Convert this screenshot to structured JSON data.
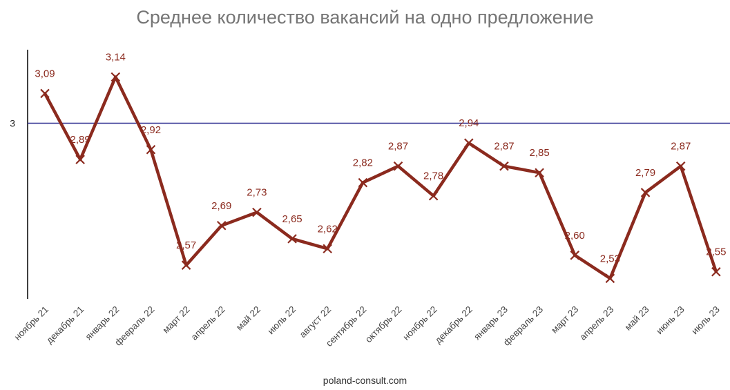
{
  "chart_data": {
    "type": "line",
    "title": "Среднее количество вакансий на одно предложение",
    "xlabel": "",
    "ylabel": "",
    "categories": [
      "ноябрь 21",
      "декабрь 21",
      "январь 22",
      "февраль 22",
      "март 22",
      "апрель 22",
      "май 22",
      "июль 22",
      "август 22",
      "сентябрь 22",
      "октябрь 22",
      "ноябрь 22",
      "декабрь 22",
      "январь 23",
      "февраль 23",
      "март 23",
      "апрель 23",
      "май 23",
      "июнь 23",
      "июль 23"
    ],
    "series": [
      {
        "values": [
          3.09,
          2.89,
          3.14,
          2.92,
          2.57,
          2.69,
          2.73,
          2.65,
          2.62,
          2.82,
          2.87,
          2.78,
          2.94,
          2.87,
          2.85,
          2.6,
          2.53,
          2.79,
          2.87,
          2.55
        ],
        "labels": [
          "3,09",
          "2,89",
          "3,14",
          "2,92",
          "2,57",
          "2,69",
          "2,73",
          "2,65",
          "2,62",
          "2,82",
          "2,87",
          "2,78",
          "2,94",
          "2,87",
          "2,85",
          "2,60",
          "2,53",
          "2,79",
          "2,87",
          "2,55"
        ]
      }
    ],
    "reference_line": {
      "value": 3,
      "label": "3"
    },
    "ylim": [
      2.47,
      3.3
    ],
    "grid": false,
    "legend": "none"
  },
  "colors": {
    "series": "#8b2a1e",
    "reference_line": "#2b2b8f",
    "axis": "#000000",
    "title": "#757575"
  },
  "source": "poland-consult.com"
}
